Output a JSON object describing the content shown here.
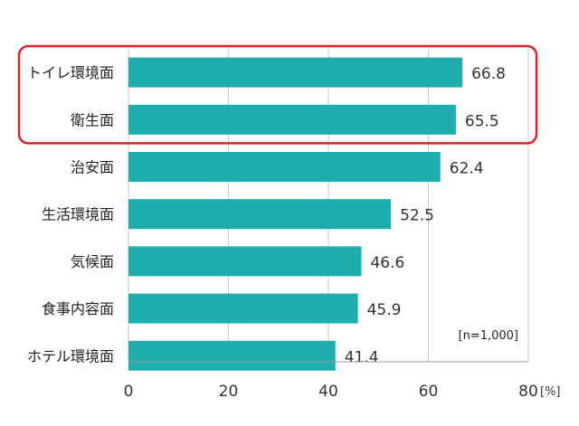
{
  "chart_data": {
    "type": "bar",
    "orientation": "horizontal",
    "categories": [
      "トイレ環境面",
      "衛生面",
      "治安面",
      "生活環境面",
      "気候面",
      "食事内容面",
      "ホテル環境面"
    ],
    "values": [
      66.8,
      65.5,
      62.4,
      52.5,
      46.6,
      45.9,
      41.4
    ],
    "value_labels": [
      "66.8",
      "65.5",
      "62.4",
      "52.5",
      "46.6",
      "45.9",
      "41.4"
    ],
    "xlim": [
      0,
      80
    ],
    "x_ticks": [
      "0",
      "20",
      "40",
      "60",
      "80"
    ],
    "x_unit": "[%]",
    "annotation": "[n=1,000]",
    "grid": "vertical",
    "highlight": {
      "categories": [
        "トイレ環境面",
        "衛生面"
      ],
      "color": "#e0202a"
    },
    "colors": {
      "bar": "#1fadad",
      "grid": "#c8c8c8"
    }
  }
}
